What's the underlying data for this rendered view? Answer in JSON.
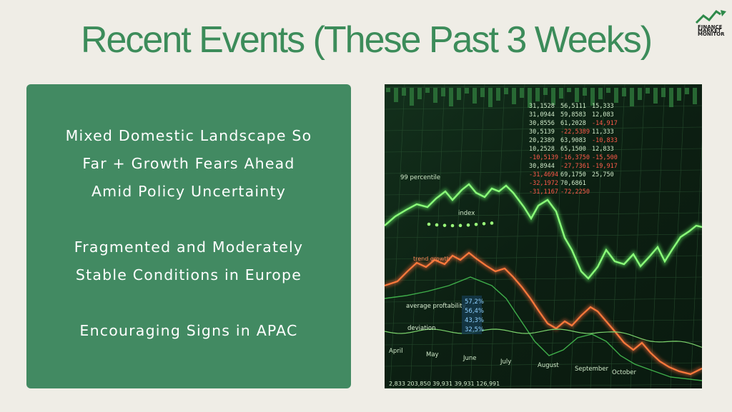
{
  "title": "Recent Events (These Past 3 Weeks)",
  "logo": {
    "lines": [
      "FINANCE",
      "MARKET",
      "MONITOR"
    ],
    "color": "#2e8a4a"
  },
  "panel": {
    "background": "#428a62",
    "bullets": [
      "Mixed Domestic Landscape So\nFar + Growth Fears Ahead\nAmid Policy Uncertainty",
      "Fragmented and Moderately\nStable Conditions in Europe",
      "Encouraging Signs in APAC"
    ]
  },
  "chart_image": {
    "table_rows": [
      [
        "31,1528",
        "56,5111",
        "15,333"
      ],
      [
        "31,0944",
        "59,8583",
        "12,083"
      ],
      [
        "30,8556",
        "61,2028",
        "-14,917"
      ],
      [
        "30,5139",
        "-22,5389",
        "11,333"
      ],
      [
        "20,2389",
        "63,9083",
        "-10,833"
      ],
      [
        "10,2528",
        "65,1500",
        "12,833"
      ],
      [
        "-10,5139",
        "-16,3750",
        "-15,500"
      ],
      [
        "30,8944",
        "-27,7361",
        "-19,917"
      ],
      [
        "-31,4694",
        "69,1750",
        "25,750"
      ],
      [
        "-32,1972",
        "70,6861",
        ""
      ],
      [
        "-31,1167",
        "-72,2250",
        ""
      ]
    ],
    "labels": {
      "percentile": "99 percentile",
      "index": "index",
      "trend": "trend growth",
      "avg_prof": "average proftability",
      "deviation": "deviation"
    },
    "pct_values": [
      "57,2%",
      "56,4%",
      "43,3%",
      "32,5%"
    ],
    "months": [
      "April",
      "May",
      "June",
      "July",
      "August",
      "September",
      "October"
    ],
    "bottom_numbers": "2,833 203,850 39,931 39,931  126,991"
  }
}
